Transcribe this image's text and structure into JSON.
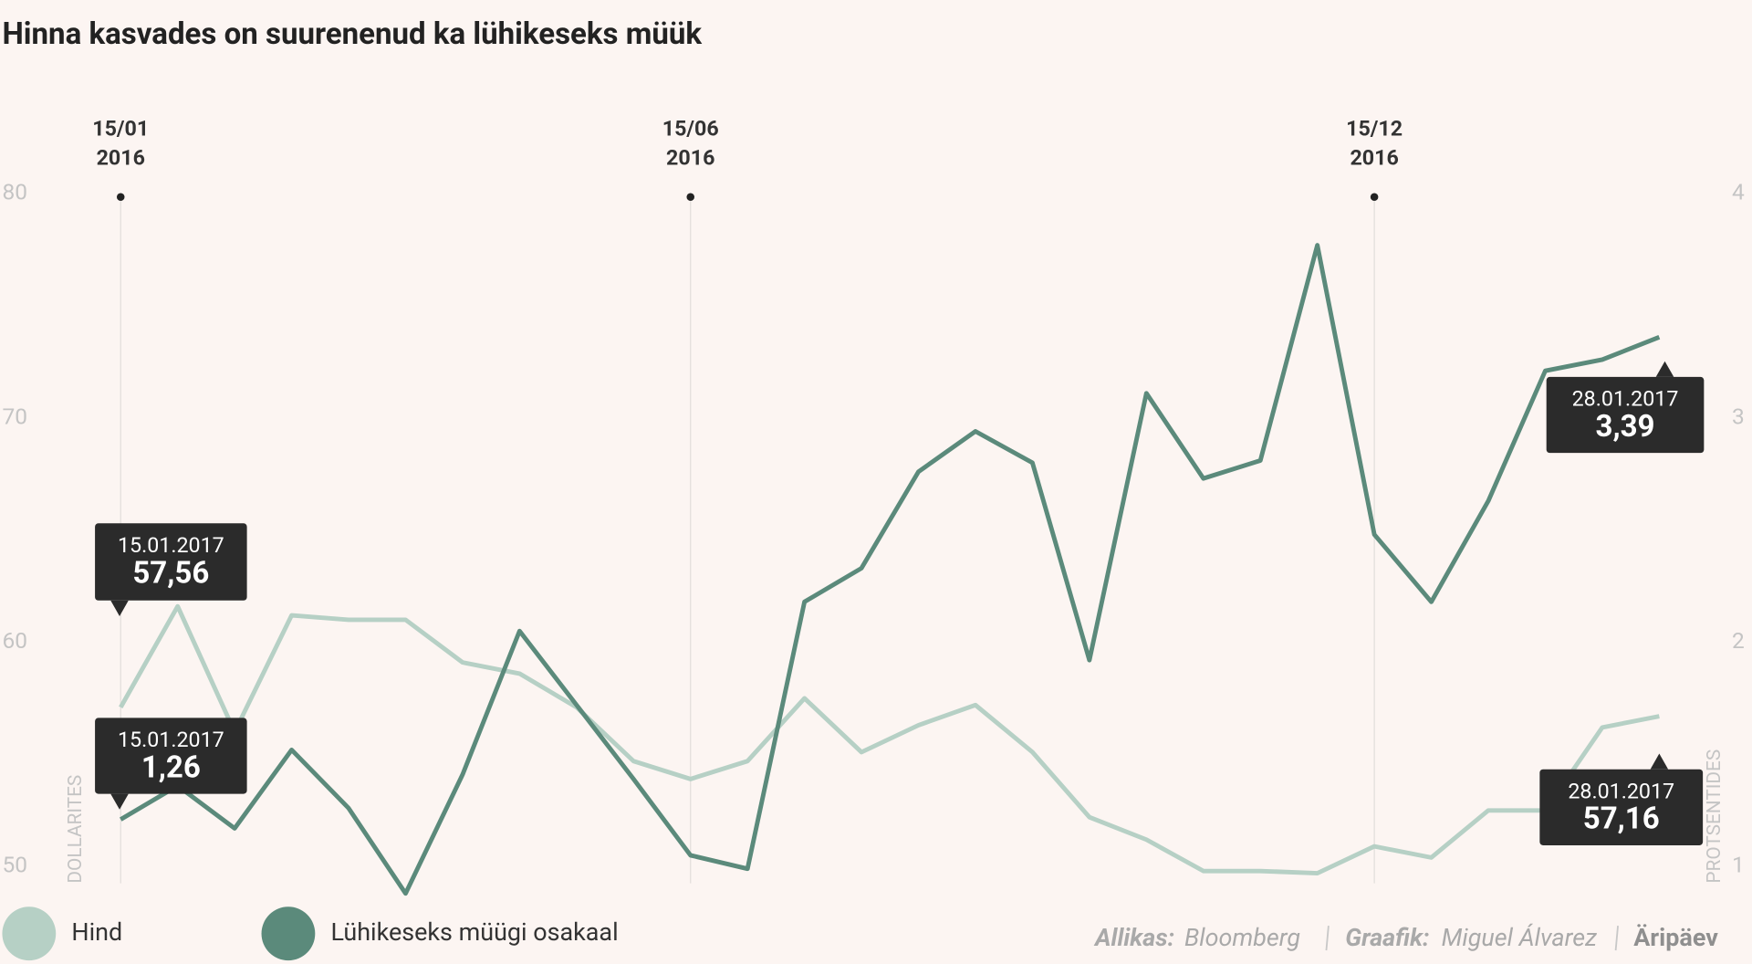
{
  "chart_data": {
    "type": "line",
    "title": "Hinna kasvades on suurenenud ka lühikeseks müük",
    "y_label": "DOLLARITES",
    "y2_label": "PROTSENTIDES",
    "categories": [
      {
        "day": "15/01",
        "year": "2016"
      },
      null,
      null,
      null,
      null,
      null,
      null,
      null,
      null,
      null,
      {
        "day": "15/06",
        "year": "2016"
      },
      null,
      null,
      null,
      null,
      null,
      null,
      null,
      null,
      null,
      null,
      null,
      {
        "day": "15/12",
        "year": "2016"
      },
      null,
      null,
      null,
      null,
      null
    ],
    "series": [
      {
        "name": "Hind",
        "color": "#b6d0c5",
        "axis": "y",
        "values": [
          57.1,
          61.6,
          56.0,
          61.2,
          61.0,
          61.0,
          59.1,
          58.6,
          57.1,
          54.7,
          53.9,
          54.7,
          57.5,
          55.1,
          56.3,
          57.2,
          55.1,
          52.2,
          51.2,
          49.8,
          49.8,
          49.7,
          50.9,
          50.4,
          52.5,
          52.5,
          56.2,
          56.7
        ]
      },
      {
        "name": "Lühikeseks müügi osakaal",
        "color": "#5b8a7b",
        "axis": "y2",
        "values": [
          1.21,
          1.36,
          1.17,
          1.52,
          1.26,
          0.88,
          1.41,
          2.05,
          1.72,
          1.39,
          1.05,
          0.99,
          2.18,
          2.33,
          2.76,
          2.94,
          2.8,
          1.92,
          3.11,
          2.73,
          2.81,
          3.77,
          2.48,
          2.18,
          2.63,
          3.21,
          3.26,
          3.36
        ]
      }
    ],
    "ylim": [
      50,
      80
    ],
    "yticks": [
      50,
      60,
      70,
      80
    ],
    "y2lim": [
      1,
      4
    ],
    "y2ticks": [
      1,
      2,
      3,
      4
    ],
    "annotations": [
      {
        "date": "15.01.2017",
        "value": "57,56"
      },
      {
        "date": "15.01.2017",
        "value": "1,26"
      },
      {
        "date": "28.01.2017",
        "value": "3,39"
      },
      {
        "date": "28.01.2017",
        "value": "57,16"
      }
    ],
    "source": {
      "label": "Allikas:",
      "text": "Bloomberg"
    },
    "credit": {
      "label": "Graafik:",
      "text": "Miguel Álvarez"
    },
    "brand": "Äripäev"
  }
}
